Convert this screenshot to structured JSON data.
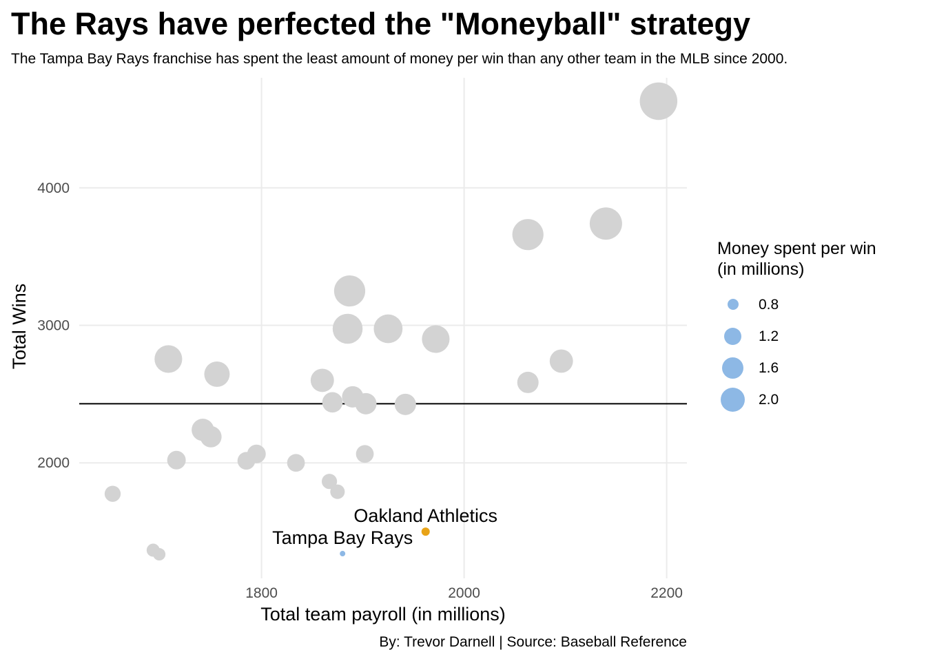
{
  "title": "The Rays have perfected the \"Moneyball\" strategy",
  "subtitle": "The Tampa Bay Rays franchise has spent the least amount of money per win than any other team in the MLB since 2000.",
  "caption": "By: Trevor Darnell | Source: Baseball Reference",
  "colors": {
    "other_teams": "#d3d3d3",
    "tampa_bay_rays": "#8db8e5",
    "oakland_athletics": "#e8a317",
    "reference_line": "#000000",
    "grid": "#ebebeb"
  },
  "chart_data": {
    "type": "scatter",
    "title": "The Rays have perfected the \"Moneyball\" strategy",
    "subtitle": "The Tampa Bay Rays franchise has spent the least amount of money per win than any other team in the MLB since 2000.",
    "xlabel": "Total team payroll (in millions)",
    "ylabel": "Total Wins",
    "xlim": [
      1620,
      2220
    ],
    "ylim": [
      1160,
      4800
    ],
    "x_ticks": [
      1800,
      2000,
      2200
    ],
    "y_ticks": [
      2000,
      3000,
      4000
    ],
    "grid": true,
    "reference_line_y": 2430,
    "size_legend": {
      "title": "Money spent per win\n(in millions)",
      "title_lines": [
        "Money spent per win",
        "(in millions)"
      ],
      "entries": [
        {
          "label": "0.8",
          "value": 0.8
        },
        {
          "label": "1.2",
          "value": 1.2
        },
        {
          "label": "1.6",
          "value": 1.6
        },
        {
          "label": "2.0",
          "value": 2.0
        }
      ],
      "placement": "right"
    },
    "highlighted": [
      {
        "label": "Oakland Athletics",
        "x": 1962,
        "y": 1500,
        "size": 0.9,
        "color_key": "oakland_athletics"
      },
      {
        "label": "Tampa Bay Rays",
        "x": 1880,
        "y": 1340,
        "size": 0.75,
        "color_key": "tampa_bay_rays"
      }
    ],
    "points": [
      {
        "x": 2192,
        "y": 4630,
        "size": 2.2
      },
      {
        "x": 2140,
        "y": 3740,
        "size": 2.0
      },
      {
        "x": 2063,
        "y": 3660,
        "size": 1.95
      },
      {
        "x": 1887,
        "y": 3250,
        "size": 1.95
      },
      {
        "x": 1885,
        "y": 2975,
        "size": 1.9
      },
      {
        "x": 1925,
        "y": 2975,
        "size": 1.85
      },
      {
        "x": 1972,
        "y": 2900,
        "size": 1.8
      },
      {
        "x": 1708,
        "y": 2755,
        "size": 1.8
      },
      {
        "x": 1756,
        "y": 2645,
        "size": 1.7
      },
      {
        "x": 2096,
        "y": 2740,
        "size": 1.6
      },
      {
        "x": 2063,
        "y": 2585,
        "size": 1.5
      },
      {
        "x": 1860,
        "y": 2600,
        "size": 1.6
      },
      {
        "x": 1890,
        "y": 2480,
        "size": 1.5
      },
      {
        "x": 1870,
        "y": 2440,
        "size": 1.45
      },
      {
        "x": 1903,
        "y": 2430,
        "size": 1.5
      },
      {
        "x": 1942,
        "y": 2425,
        "size": 1.5
      },
      {
        "x": 1742,
        "y": 2240,
        "size": 1.55
      },
      {
        "x": 1750,
        "y": 2190,
        "size": 1.5
      },
      {
        "x": 1716,
        "y": 2020,
        "size": 1.35
      },
      {
        "x": 1795,
        "y": 2065,
        "size": 1.35
      },
      {
        "x": 1785,
        "y": 2015,
        "size": 1.3
      },
      {
        "x": 1834,
        "y": 2000,
        "size": 1.3
      },
      {
        "x": 1902,
        "y": 2065,
        "size": 1.3
      },
      {
        "x": 1653,
        "y": 1775,
        "size": 1.2
      },
      {
        "x": 1867,
        "y": 1865,
        "size": 1.15
      },
      {
        "x": 1875,
        "y": 1790,
        "size": 1.1
      },
      {
        "x": 1693,
        "y": 1365,
        "size": 1.0
      },
      {
        "x": 1699,
        "y": 1335,
        "size": 0.95
      }
    ]
  }
}
